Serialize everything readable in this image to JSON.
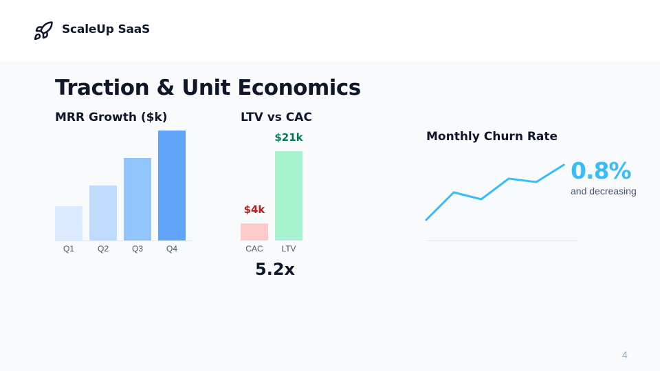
{
  "brand": {
    "name": "ScaleUp SaaS",
    "icon": "rocket-icon"
  },
  "slide": {
    "title": "Traction & Unit Economics",
    "page_number": "4"
  },
  "mrr": {
    "title": "MRR Growth ($k)"
  },
  "ltv": {
    "title": "LTV vs CAC",
    "ratio": "5.2x"
  },
  "churn": {
    "title": "Monthly Churn Rate",
    "value": "0.8%",
    "note": "and decreasing"
  },
  "colors": {
    "text": "#0f172a",
    "mrr_bars": [
      "#dbeafe",
      "#bfdbfe",
      "#93c5fd",
      "#60a5fa"
    ],
    "cac_bar": "#fecaca",
    "cac_label": "#b91c1c",
    "ltv_bar": "#a7f3d0",
    "ltv_label": "#047857",
    "churn_line": "#38bdf8",
    "baseline": "#e2e8f0"
  },
  "chart_data": [
    {
      "type": "bar",
      "categories": [
        "Q1",
        "Q2",
        "Q3",
        "Q4"
      ],
      "values": [
        5,
        8,
        12,
        16
      ],
      "title": "MRR Growth ($k)",
      "xlabel": "",
      "ylabel": "",
      "ylim": [
        0,
        16
      ],
      "grid": false
    },
    {
      "type": "bar",
      "categories": [
        "CAC",
        "LTV"
      ],
      "values": [
        4,
        21
      ],
      "data_labels": [
        "$4k",
        "$21k"
      ],
      "title": "LTV vs CAC",
      "ylim": [
        0,
        21
      ],
      "grid": false
    },
    {
      "type": "line",
      "x": [
        0,
        1,
        2,
        3,
        4,
        5
      ],
      "values": [
        0,
        4,
        3,
        6,
        5.5,
        8
      ],
      "title": "Monthly Churn Rate",
      "ylim": [
        0,
        8
      ],
      "grid": false
    }
  ]
}
